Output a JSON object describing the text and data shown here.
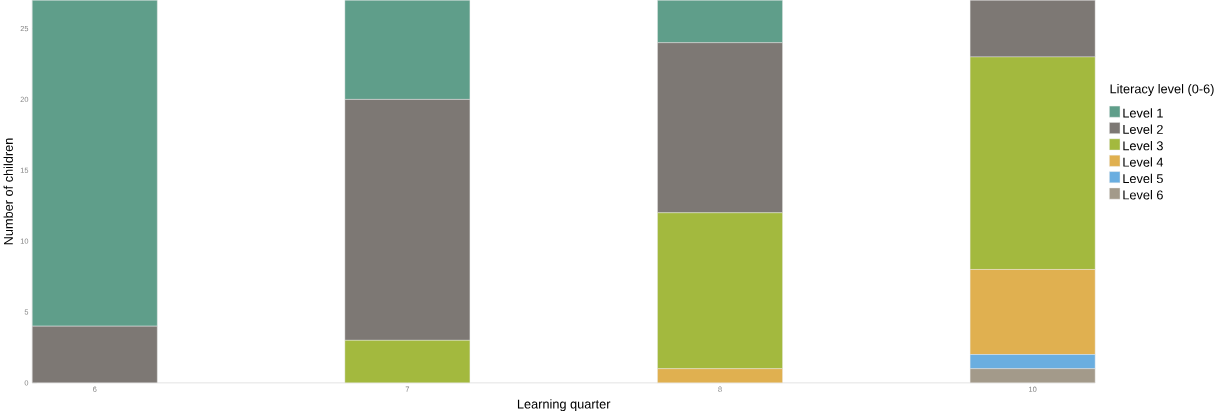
{
  "chart_data": {
    "type": "bar",
    "stacked": true,
    "xlabel": "Learning quarter",
    "ylabel": "Number of children",
    "legend_title": "Literacy level (0-6)",
    "categories": [
      "6",
      "7",
      "8",
      "10"
    ],
    "series": [
      {
        "name": "Level 6",
        "color": "#a39a8a",
        "values": [
          0,
          0,
          0,
          1
        ]
      },
      {
        "name": "Level 5",
        "color": "#6aaee0",
        "values": [
          0,
          0,
          0,
          1
        ]
      },
      {
        "name": "Level 4",
        "color": "#e0b050",
        "values": [
          0,
          0,
          1,
          6
        ]
      },
      {
        "name": "Level 3",
        "color": "#a3b93e",
        "values": [
          0,
          3,
          11,
          15
        ]
      },
      {
        "name": "Level 2",
        "color": "#7d7874",
        "values": [
          4,
          17,
          12,
          4
        ]
      },
      {
        "name": "Level 1",
        "color": "#5f9e8a",
        "values": [
          23,
          7,
          3,
          0
        ]
      }
    ],
    "ylim": [
      0,
      27
    ],
    "yticks": [
      0,
      5,
      10,
      15,
      20,
      25
    ],
    "grid": false,
    "legend": "right"
  }
}
